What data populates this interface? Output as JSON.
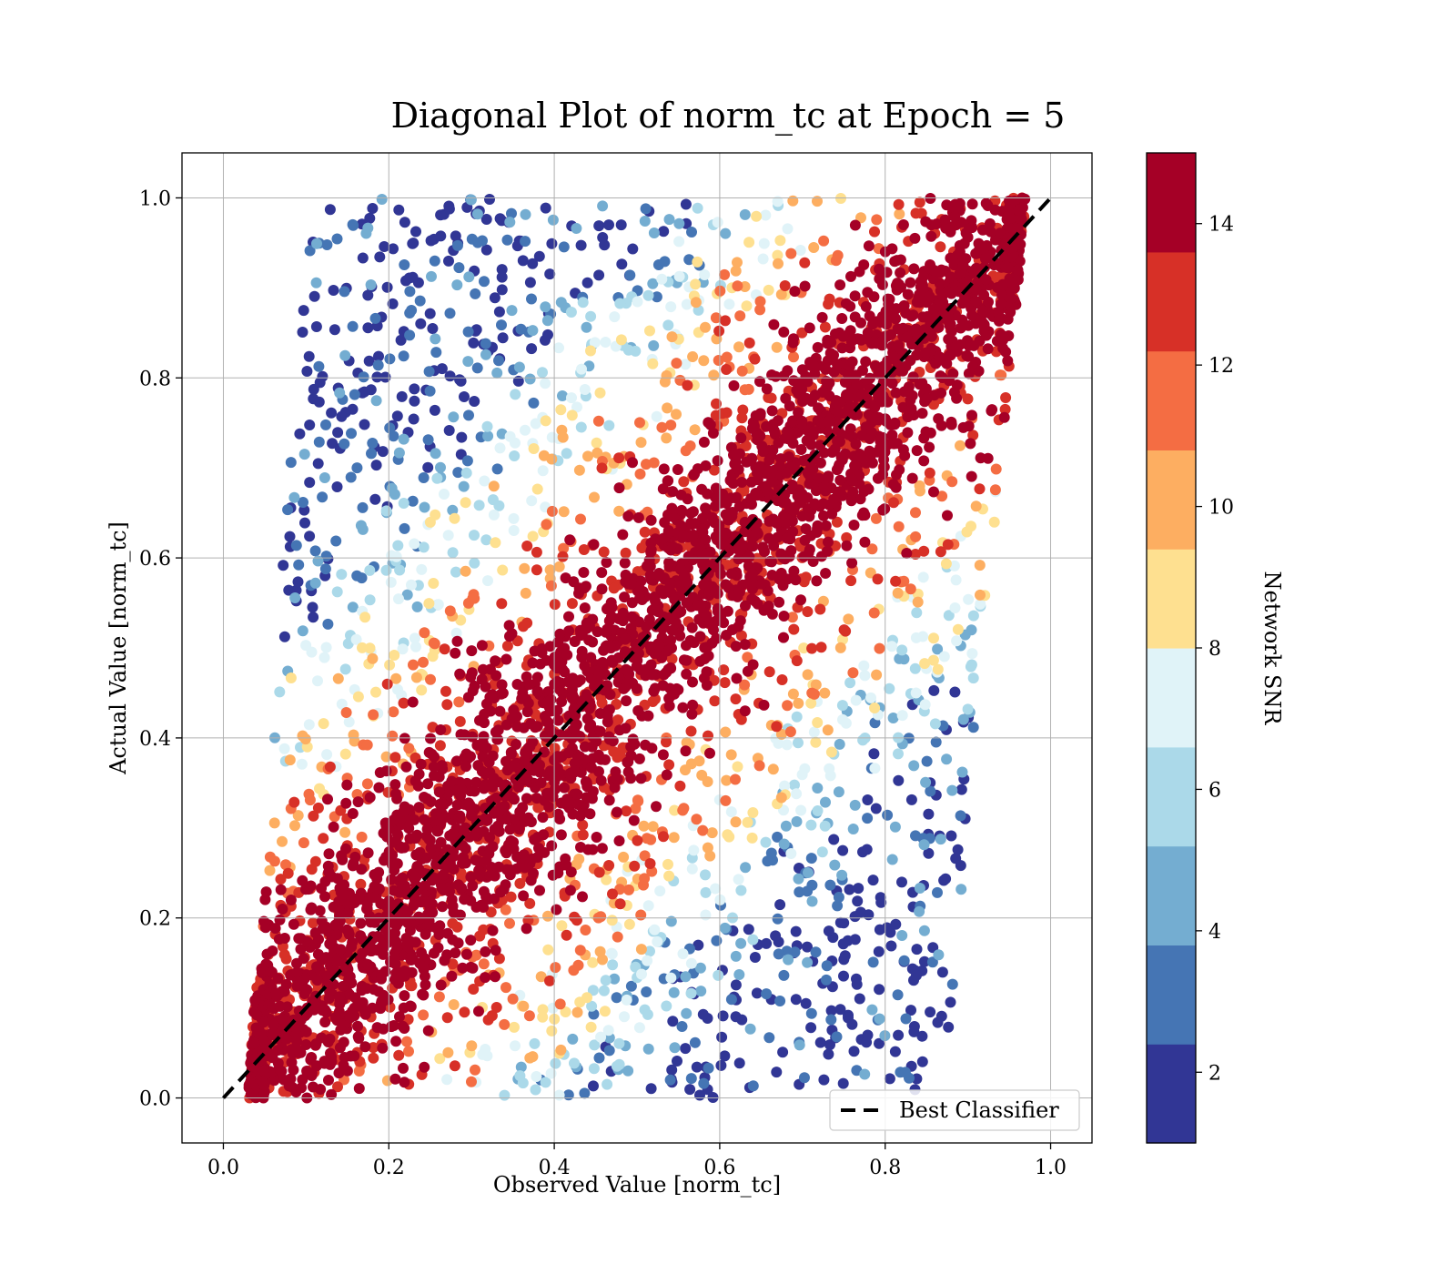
{
  "chart_data": {
    "type": "scatter",
    "title": "Diagonal Plot of norm_tc at Epoch = 5",
    "xlabel": "Observed Value [norm_tc]",
    "ylabel": "Actual Value [norm_tc]",
    "xlim": [
      -0.05,
      1.05
    ],
    "ylim": [
      -0.05,
      1.05
    ],
    "xticks": [
      "0.0",
      "0.2",
      "0.4",
      "0.6",
      "0.8",
      "1.0"
    ],
    "yticks": [
      "0.0",
      "0.2",
      "0.4",
      "0.6",
      "0.8",
      "1.0"
    ],
    "grid": true,
    "colorbar": {
      "label": "Network SNR",
      "range": [
        1,
        15
      ],
      "ticks": [
        "2",
        "4",
        "6",
        "8",
        "10",
        "12",
        "14"
      ],
      "colors": [
        "#313695",
        "#4575b4",
        "#74add1",
        "#abd9e9",
        "#e0f3f8",
        "#fee090",
        "#fdae61",
        "#f46d43",
        "#d73027",
        "#a50026"
      ]
    },
    "reference_line": {
      "name": "Best Classifier",
      "x": [
        0.0,
        1.0
      ],
      "y": [
        0.0,
        1.0
      ],
      "style": "dashed",
      "color": "#000000"
    },
    "legend": {
      "placement": "lower-right",
      "entries": [
        "Best Classifier"
      ]
    },
    "scatter_band": {
      "x_min_at_y0": 0.03,
      "x_max_at_y0": 0.87,
      "x_min_at_y1": 0.1,
      "x_max_at_y1": 0.97,
      "dense_high_snr_halfwidth": 0.12,
      "snr_color_rule": "high SNR (14) near the diagonal, decreasing toward band edges"
    }
  }
}
